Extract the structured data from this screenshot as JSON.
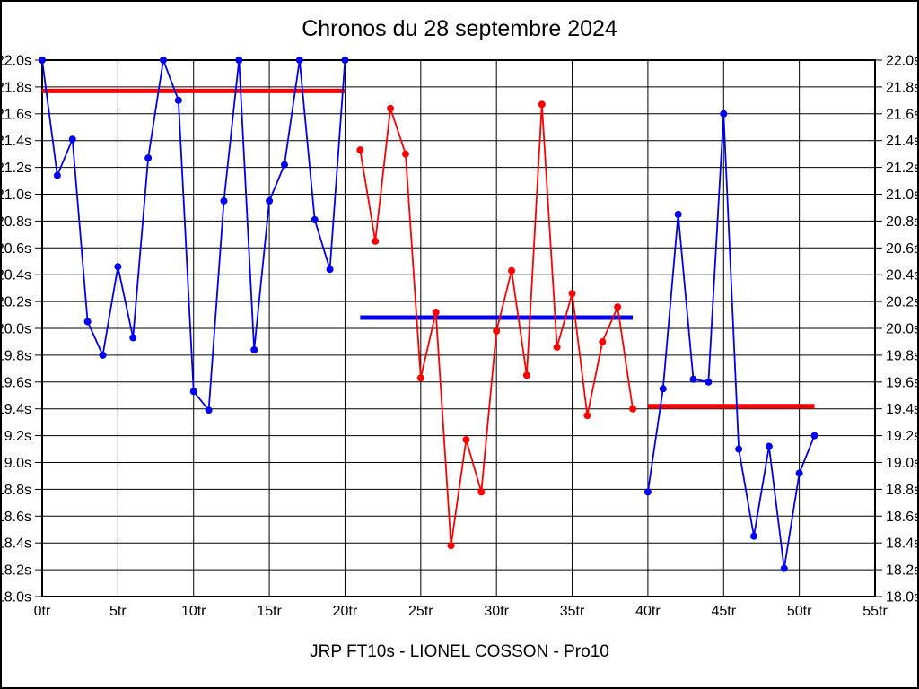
{
  "title": "Chronos du 28 septembre 2024",
  "footer": "JRP FT10s - LIONEL COSSON - Pro10",
  "colors": {
    "background": "#FFFFFF",
    "grid": "#000000",
    "series_blue": "#0000F0",
    "series_red": "#FF0000"
  },
  "chart_data": {
    "type": "line",
    "title": "Chronos du 28 septembre 2024",
    "subtitle": "JRP FT10s - LIONEL COSSON - Pro10",
    "xlabel": "",
    "ylabel": "",
    "xlim": [
      0,
      55
    ],
    "ylim": [
      18.0,
      22.0
    ],
    "x_tick_step": 5,
    "y_tick_step": 0.2,
    "x_tick_suffix": "tr",
    "y_tick_suffix": "s",
    "grid": true,
    "legend_position": "none",
    "series": [
      {
        "name": "run-1",
        "color": "series_blue",
        "x_start": 0,
        "values": [
          22.0,
          21.14,
          21.41,
          20.05,
          19.8,
          20.46,
          19.93,
          21.27,
          22.0,
          21.7,
          19.53,
          19.39,
          20.95,
          22.0,
          19.84,
          20.95,
          21.22,
          22.0,
          20.81,
          20.44,
          22.0
        ]
      },
      {
        "name": "run-2",
        "color": "series_red",
        "x_start": 21,
        "values": [
          21.33,
          20.65,
          21.64,
          21.3,
          19.63,
          20.12,
          18.38,
          19.17,
          18.78,
          19.98,
          20.43,
          19.65,
          21.67,
          19.86,
          20.26,
          19.35,
          19.9,
          20.16,
          19.4
        ]
      },
      {
        "name": "run-3",
        "color": "series_blue",
        "x_start": 40,
        "values": [
          18.78,
          19.55,
          20.85,
          19.62,
          19.6,
          21.6,
          19.1,
          18.45,
          19.12,
          18.21,
          18.92,
          19.2
        ]
      }
    ],
    "reference_lines": [
      {
        "name": "avg-run-1",
        "color": "series_red",
        "y": 21.77,
        "x_start": 0,
        "x_end": 20
      },
      {
        "name": "avg-run-2",
        "color": "series_blue",
        "y": 20.08,
        "x_start": 21,
        "x_end": 39
      },
      {
        "name": "avg-run-3",
        "color": "series_red",
        "y": 19.42,
        "x_start": 40,
        "x_end": 51
      }
    ]
  }
}
